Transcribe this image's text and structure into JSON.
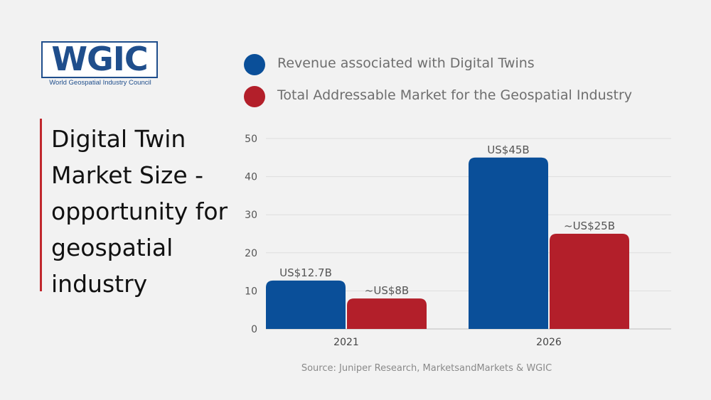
{
  "logo": {
    "word": "WGIC",
    "subtitle": "World Geospatial Industry Council"
  },
  "title": "Digital Twin Market Size - opportunity for geospatial industry",
  "source": "Source: Juniper Research, MarketsandMarkets & WGIC",
  "colors": {
    "blue": "#0a4f99",
    "red": "#b31f2a",
    "accent": "#c0272d"
  },
  "chart_data": {
    "type": "bar",
    "categories": [
      "2021",
      "2026"
    ],
    "series": [
      {
        "name": "Revenue associated with Digital Twins",
        "values": [
          12.7,
          45
        ],
        "labels": [
          "US$12.7B",
          "US$45B"
        ],
        "color": "#0a4f99"
      },
      {
        "name": "Total Addressable Market for the Geospatial Industry",
        "values": [
          8,
          25
        ],
        "labels": [
          "~US$8B",
          "~US$25B"
        ],
        "color": "#b31f2a"
      }
    ],
    "ylim": [
      0,
      50
    ],
    "yticks": [
      0,
      10,
      20,
      30,
      40,
      50
    ],
    "grid": true,
    "legend": "top"
  }
}
